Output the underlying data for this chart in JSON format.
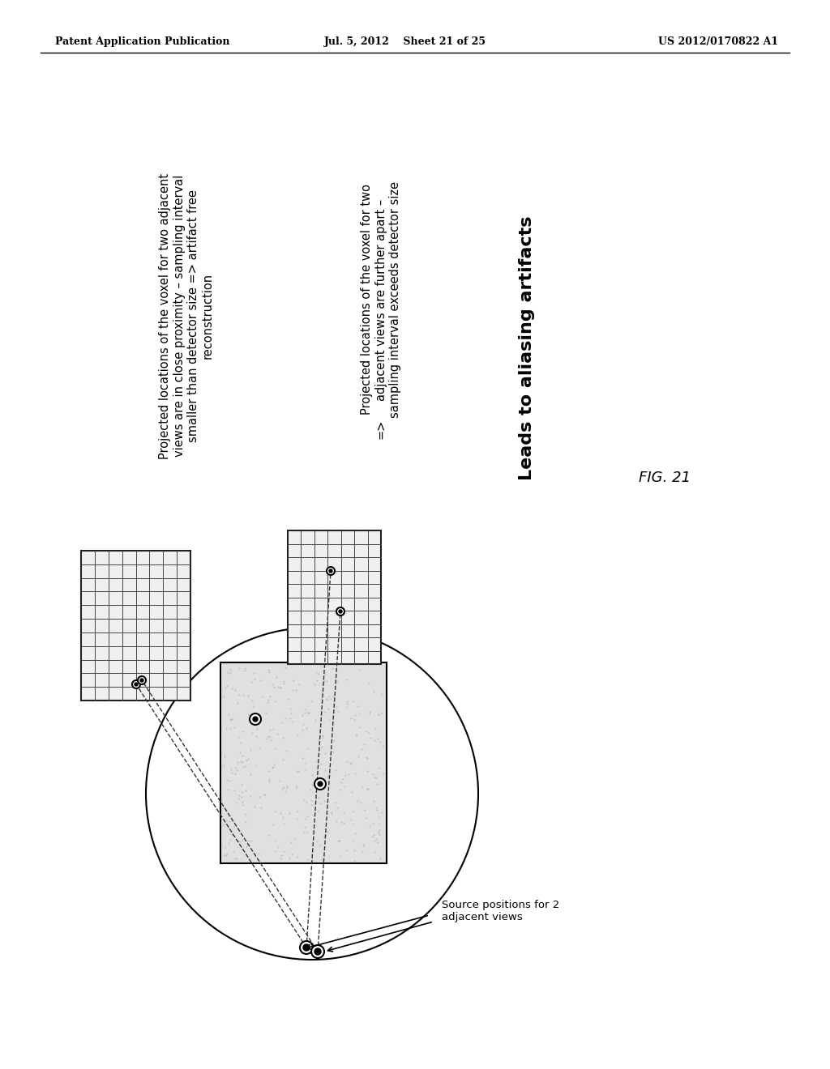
{
  "header_left": "Patent Application Publication",
  "header_center": "Jul. 5, 2012    Sheet 21 of 25",
  "header_right": "US 2012/0170822 A1",
  "fig_label": "FIG. 21",
  "text_left_rotated": "Projected locations of the voxel for two adjacent\nviews are in close proximity – sampling interval\nsmaller than detector size => artifact free\nreconstruction",
  "text_right_rotated": "Projected locations of the voxel for two\nadjacent views are further apart –\nsampling interval exceeds detector size\n=>\nLeads to aliasing artifacts",
  "source_label": "Source positions for 2\nadjacent views",
  "background_color": "#ffffff"
}
